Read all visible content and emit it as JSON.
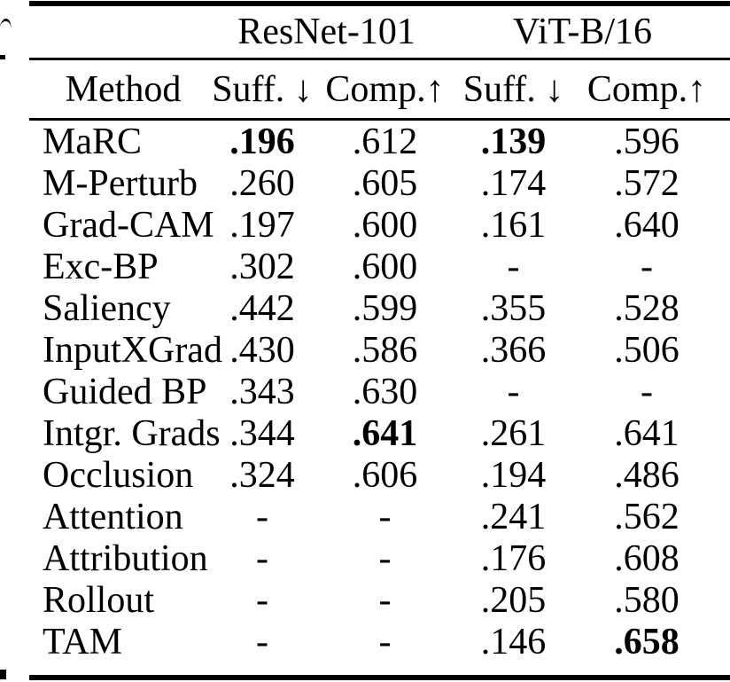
{
  "table": {
    "group_headers": [
      {
        "label": "ResNet-101"
      },
      {
        "label": "ViT-B/16"
      }
    ],
    "column_headers": [
      "Method",
      "Suff. ↓",
      "Comp.↑",
      "Suff. ↓",
      "Comp.↑"
    ],
    "rows": [
      {
        "method": "MaRC",
        "cells": [
          ".196",
          ".612",
          ".139",
          ".596"
        ],
        "bold": [
          0,
          2
        ]
      },
      {
        "method": "M-Perturb",
        "cells": [
          ".260",
          ".605",
          ".174",
          ".572"
        ],
        "bold": []
      },
      {
        "method": "Grad-CAM",
        "cells": [
          ".197",
          ".600",
          ".161",
          ".640"
        ],
        "bold": []
      },
      {
        "method": "Exc-BP",
        "cells": [
          ".302",
          ".600",
          "-",
          "-"
        ],
        "bold": []
      },
      {
        "method": "Saliency",
        "cells": [
          ".442",
          ".599",
          ".355",
          ".528"
        ],
        "bold": []
      },
      {
        "method": "InputXGrad",
        "cells": [
          ".430",
          ".586",
          ".366",
          ".506"
        ],
        "bold": []
      },
      {
        "method": "Guided BP",
        "cells": [
          ".343",
          ".630",
          "-",
          "-"
        ],
        "bold": []
      },
      {
        "method": "Intgr. Grads",
        "cells": [
          ".344",
          ".641",
          ".261",
          ".641"
        ],
        "bold": [
          1
        ]
      },
      {
        "method": "Occlusion",
        "cells": [
          ".324",
          ".606",
          ".194",
          ".486"
        ],
        "bold": []
      },
      {
        "method": "Attention",
        "cells": [
          "-",
          "-",
          ".241",
          ".562"
        ],
        "bold": []
      },
      {
        "method": "Attribution",
        "cells": [
          "-",
          "-",
          ".176",
          ".608"
        ],
        "bold": []
      },
      {
        "method": "Rollout",
        "cells": [
          "-",
          "-",
          ".205",
          ".580"
        ],
        "bold": []
      },
      {
        "method": "TAM",
        "cells": [
          "-",
          "-",
          ".146",
          ".658"
        ],
        "bold": [
          3
        ]
      }
    ],
    "colors": {
      "text": "#000000",
      "background": "#ffffff",
      "rule": "#000000"
    }
  }
}
